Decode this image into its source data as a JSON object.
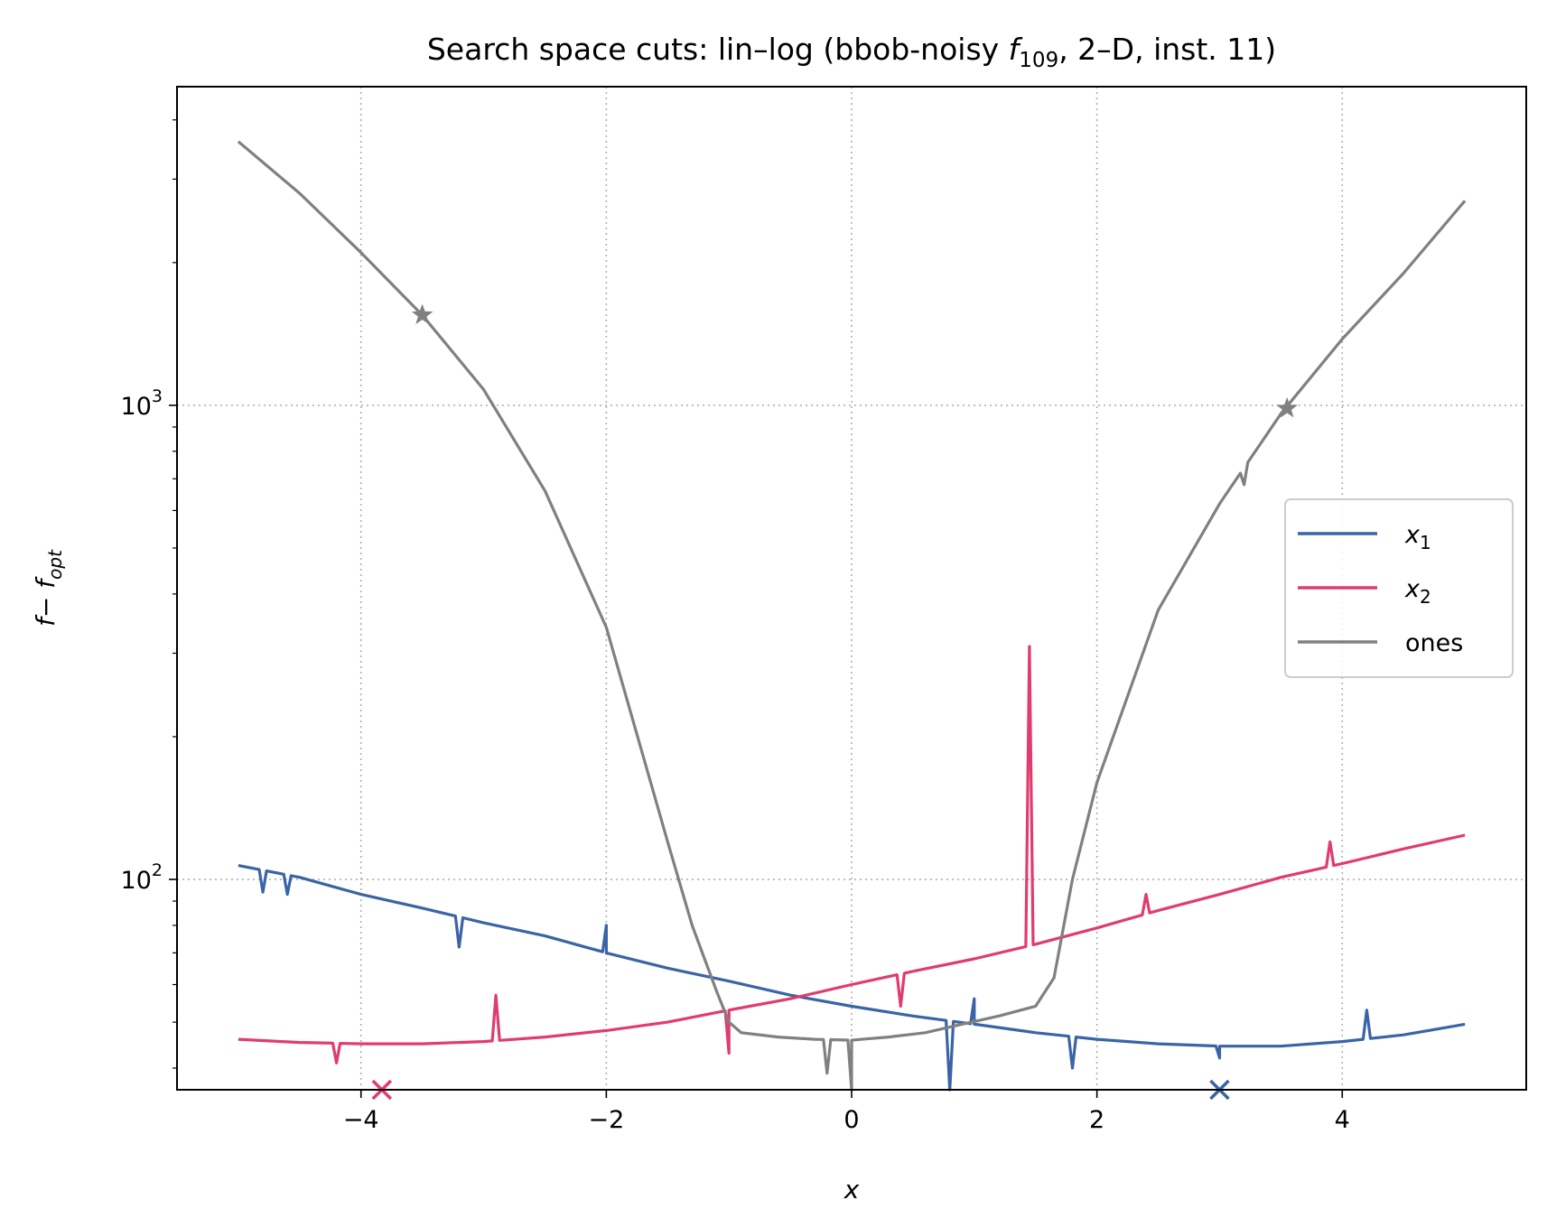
{
  "chart_data": {
    "type": "line",
    "title": "Search space cuts: lin–log (bbob-noisy f109, 2–D, inst. 11)",
    "title_parts": {
      "prefix": "Search space cuts: lin–log (bbob-noisy ",
      "func": "f",
      "func_sub": "109",
      "suffix": ", 2–D, inst. 11)"
    },
    "xlabel": "x",
    "ylabel": "f − f_opt",
    "ylabel_parts": {
      "main": "f− f",
      "sub": "opt"
    },
    "xscale": "linear",
    "yscale": "log",
    "xlim": [
      -5.5,
      5.5
    ],
    "ylim": [
      36,
      4700
    ],
    "x_ticks": [
      -4,
      -2,
      0,
      2,
      4
    ],
    "x_tick_labels": [
      "−4",
      "−2",
      "0",
      "2",
      "4"
    ],
    "y_ticks": [
      100,
      1000
    ],
    "y_tick_labels": {
      "base": "10",
      "exponents": [
        "2",
        "3"
      ]
    },
    "grid": true,
    "legend_position": "center-right",
    "series": [
      {
        "name": "x1",
        "label_main": "x",
        "label_sub": "1",
        "color": "#3a64a6",
        "x": [
          -5,
          -4.5,
          -4,
          -3.5,
          -3,
          -2.5,
          -2,
          -1.5,
          -1,
          -0.5,
          0,
          0.5,
          1,
          1.5,
          2,
          2.5,
          3,
          3.5,
          4,
          4.5,
          5
        ],
        "y": [
          107,
          101,
          93,
          87,
          81,
          76,
          70,
          65,
          61,
          57,
          54,
          51.5,
          49.5,
          47.5,
          46,
          45,
          44.5,
          44.5,
          45.5,
          47,
          49.5
        ],
        "spikes": [
          [
            -4.8,
            94
          ],
          [
            -4.6,
            93
          ],
          [
            -3.2,
            72
          ],
          [
            -2.0,
            80
          ],
          [
            0.8,
            36
          ],
          [
            1.0,
            56
          ],
          [
            1.8,
            40
          ],
          [
            3.0,
            42
          ],
          [
            4.2,
            53
          ]
        ]
      },
      {
        "name": "x2",
        "label_main": "x",
        "label_sub": "2",
        "color": "#e03c6e",
        "x": [
          -5,
          -4.5,
          -4,
          -3.5,
          -3,
          -2.5,
          -2,
          -1.5,
          -1,
          -0.5,
          0,
          0.5,
          1,
          1.5,
          2,
          2.5,
          3,
          3.5,
          4,
          4.5,
          5
        ],
        "y": [
          46,
          45.3,
          45,
          45,
          45.5,
          46.5,
          48,
          50,
          53,
          56,
          60,
          64,
          68,
          73,
          79,
          86,
          93,
          101,
          108,
          116,
          124
        ],
        "spikes": [
          [
            -4.2,
            41
          ],
          [
            -2.9,
            57
          ],
          [
            -1.0,
            43
          ],
          [
            0.4,
            54
          ],
          [
            1.45,
            310
          ],
          [
            2.4,
            93
          ],
          [
            3.9,
            120
          ]
        ]
      },
      {
        "name": "ones",
        "label_main": "ones",
        "label_sub": "",
        "color": "#808080",
        "x": [
          -5,
          -4.5,
          -4,
          -3.5,
          -3,
          -2.5,
          -2,
          -1.5,
          -1.3,
          -1.1,
          -1.0,
          -0.9,
          -0.6,
          -0.3,
          0,
          0.3,
          0.6,
          0.9,
          1.2,
          1.5,
          1.65,
          1.8,
          2.0,
          2.5,
          3,
          3.5,
          4,
          4.5,
          5
        ],
        "y": [
          3600,
          2800,
          2100,
          1550,
          1080,
          660,
          340,
          120,
          80,
          58,
          50,
          47.5,
          46.5,
          46,
          45.8,
          46.5,
          47.5,
          49.5,
          51.5,
          54,
          62,
          100,
          160,
          370,
          620,
          960,
          1380,
          1900,
          2700
        ],
        "spikes": [
          [
            -0.2,
            39
          ],
          [
            0,
            36
          ],
          [
            3.2,
            680
          ]
        ]
      }
    ],
    "markers": [
      {
        "series": "ones",
        "symbol": "star",
        "x": -3.5,
        "y": 1550
      },
      {
        "series": "ones",
        "symbol": "star",
        "x": 3.55,
        "y": 985
      },
      {
        "series": "x2",
        "symbol": "x",
        "x": -3.83,
        "y": 36
      },
      {
        "series": "x1",
        "symbol": "x",
        "x": 3.0,
        "y": 36
      }
    ]
  }
}
